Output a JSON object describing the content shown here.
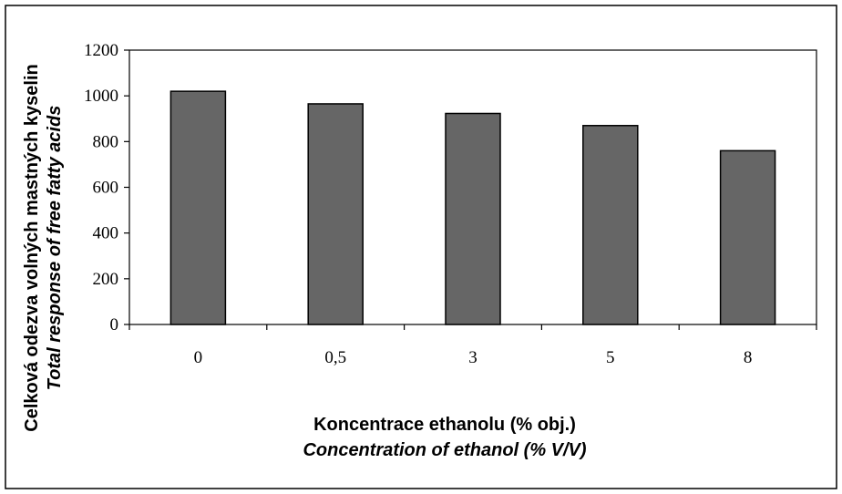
{
  "chart_data": {
    "type": "bar",
    "categories": [
      "0",
      "0,5",
      "3",
      "5",
      "8"
    ],
    "values": [
      1020,
      965,
      923,
      870,
      760
    ],
    "ylim": [
      0,
      1200
    ],
    "yticks": [
      "0",
      "200",
      "400",
      "600",
      "800",
      "1000",
      "1200"
    ],
    "xlabel": "Koncentrace ethanolu (% obj.)",
    "xlabel_en": "Concentration of ethanol (% V/V)",
    "ylabel": "Celková odezva volných mastných kyselin",
    "ylabel_en": "Total response of free fatty acids",
    "grid": false,
    "legend": "none"
  },
  "colors": {
    "bar_fill": "#666666",
    "bar_stroke": "#000000",
    "frame": "#000000"
  }
}
